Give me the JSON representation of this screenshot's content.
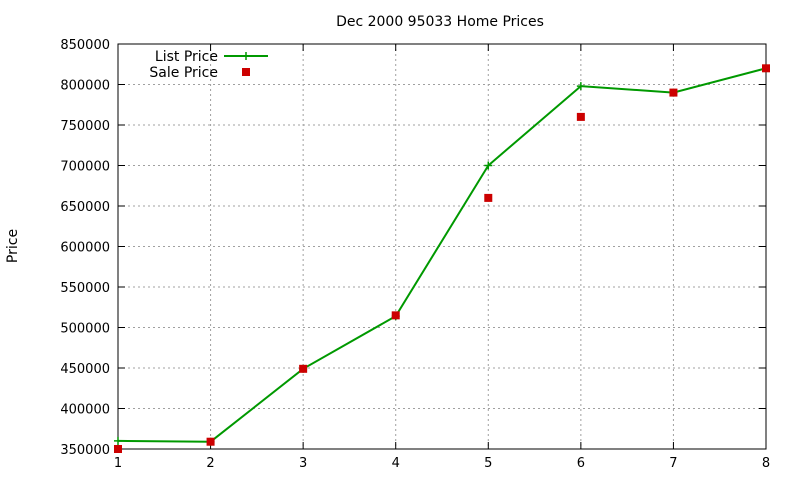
{
  "chart_data": {
    "type": "line",
    "title": "Dec 2000 95033 Home Prices",
    "xlabel": "",
    "ylabel": "Price",
    "x": [
      1,
      2,
      3,
      4,
      5,
      6,
      7,
      8
    ],
    "xlim": [
      1,
      8
    ],
    "ylim": [
      350000,
      850000
    ],
    "xticks": [
      "1",
      "2",
      "3",
      "4",
      "5",
      "6",
      "7",
      "8"
    ],
    "yticks": [
      "350000",
      "400000",
      "450000",
      "500000",
      "550000",
      "600000",
      "650000",
      "700000",
      "750000",
      "800000",
      "850000"
    ],
    "grid": true,
    "legend_position": "top-left",
    "series": [
      {
        "name": "List Price",
        "style": "line-with-plus-markers",
        "color": "#009900",
        "values": [
          360000,
          359000,
          449000,
          514000,
          700000,
          798000,
          790000,
          820000
        ]
      },
      {
        "name": "Sale Price",
        "style": "square-markers",
        "color": "#cc0000",
        "values": [
          350000,
          359000,
          449000,
          515000,
          660000,
          760000,
          790000,
          820000
        ]
      }
    ]
  }
}
